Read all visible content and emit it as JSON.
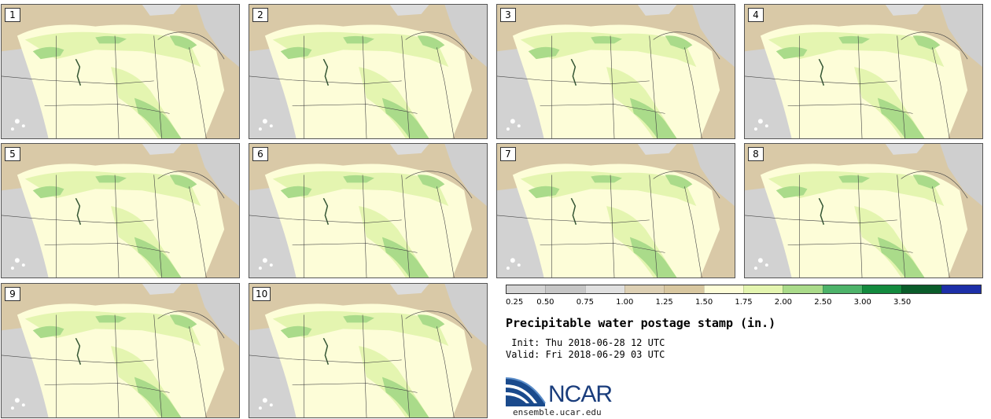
{
  "panels": [
    {
      "label": "1"
    },
    {
      "label": "2"
    },
    {
      "label": "3"
    },
    {
      "label": "4"
    },
    {
      "label": "5"
    },
    {
      "label": "6"
    },
    {
      "label": "7"
    },
    {
      "label": "8"
    },
    {
      "label": "9"
    },
    {
      "label": "10"
    }
  ],
  "colorbar": {
    "ticks": [
      "0.25",
      "0.50",
      "0.75",
      "1.00",
      "1.25",
      "1.50",
      "1.75",
      "2.00",
      "2.50",
      "3.00",
      "3.50"
    ],
    "colors": [
      "#d4d4d4",
      "#c6c6c6",
      "#e0e0e0",
      "#ddd0b4",
      "#d8c7a0",
      "#fdfdd8",
      "#e4f5b0",
      "#aadb8a",
      "#4db36a",
      "#138a3e",
      "#0a5c2a",
      "#1d2fa8"
    ]
  },
  "title": "Precipitable water postage stamp (in.)",
  "init": " Init: Thu 2018-06-28 12 UTC",
  "valid": "Valid: Fri 2018-06-29 03 UTC",
  "logo_text": "NCAR",
  "site": "ensemble.ucar.edu"
}
